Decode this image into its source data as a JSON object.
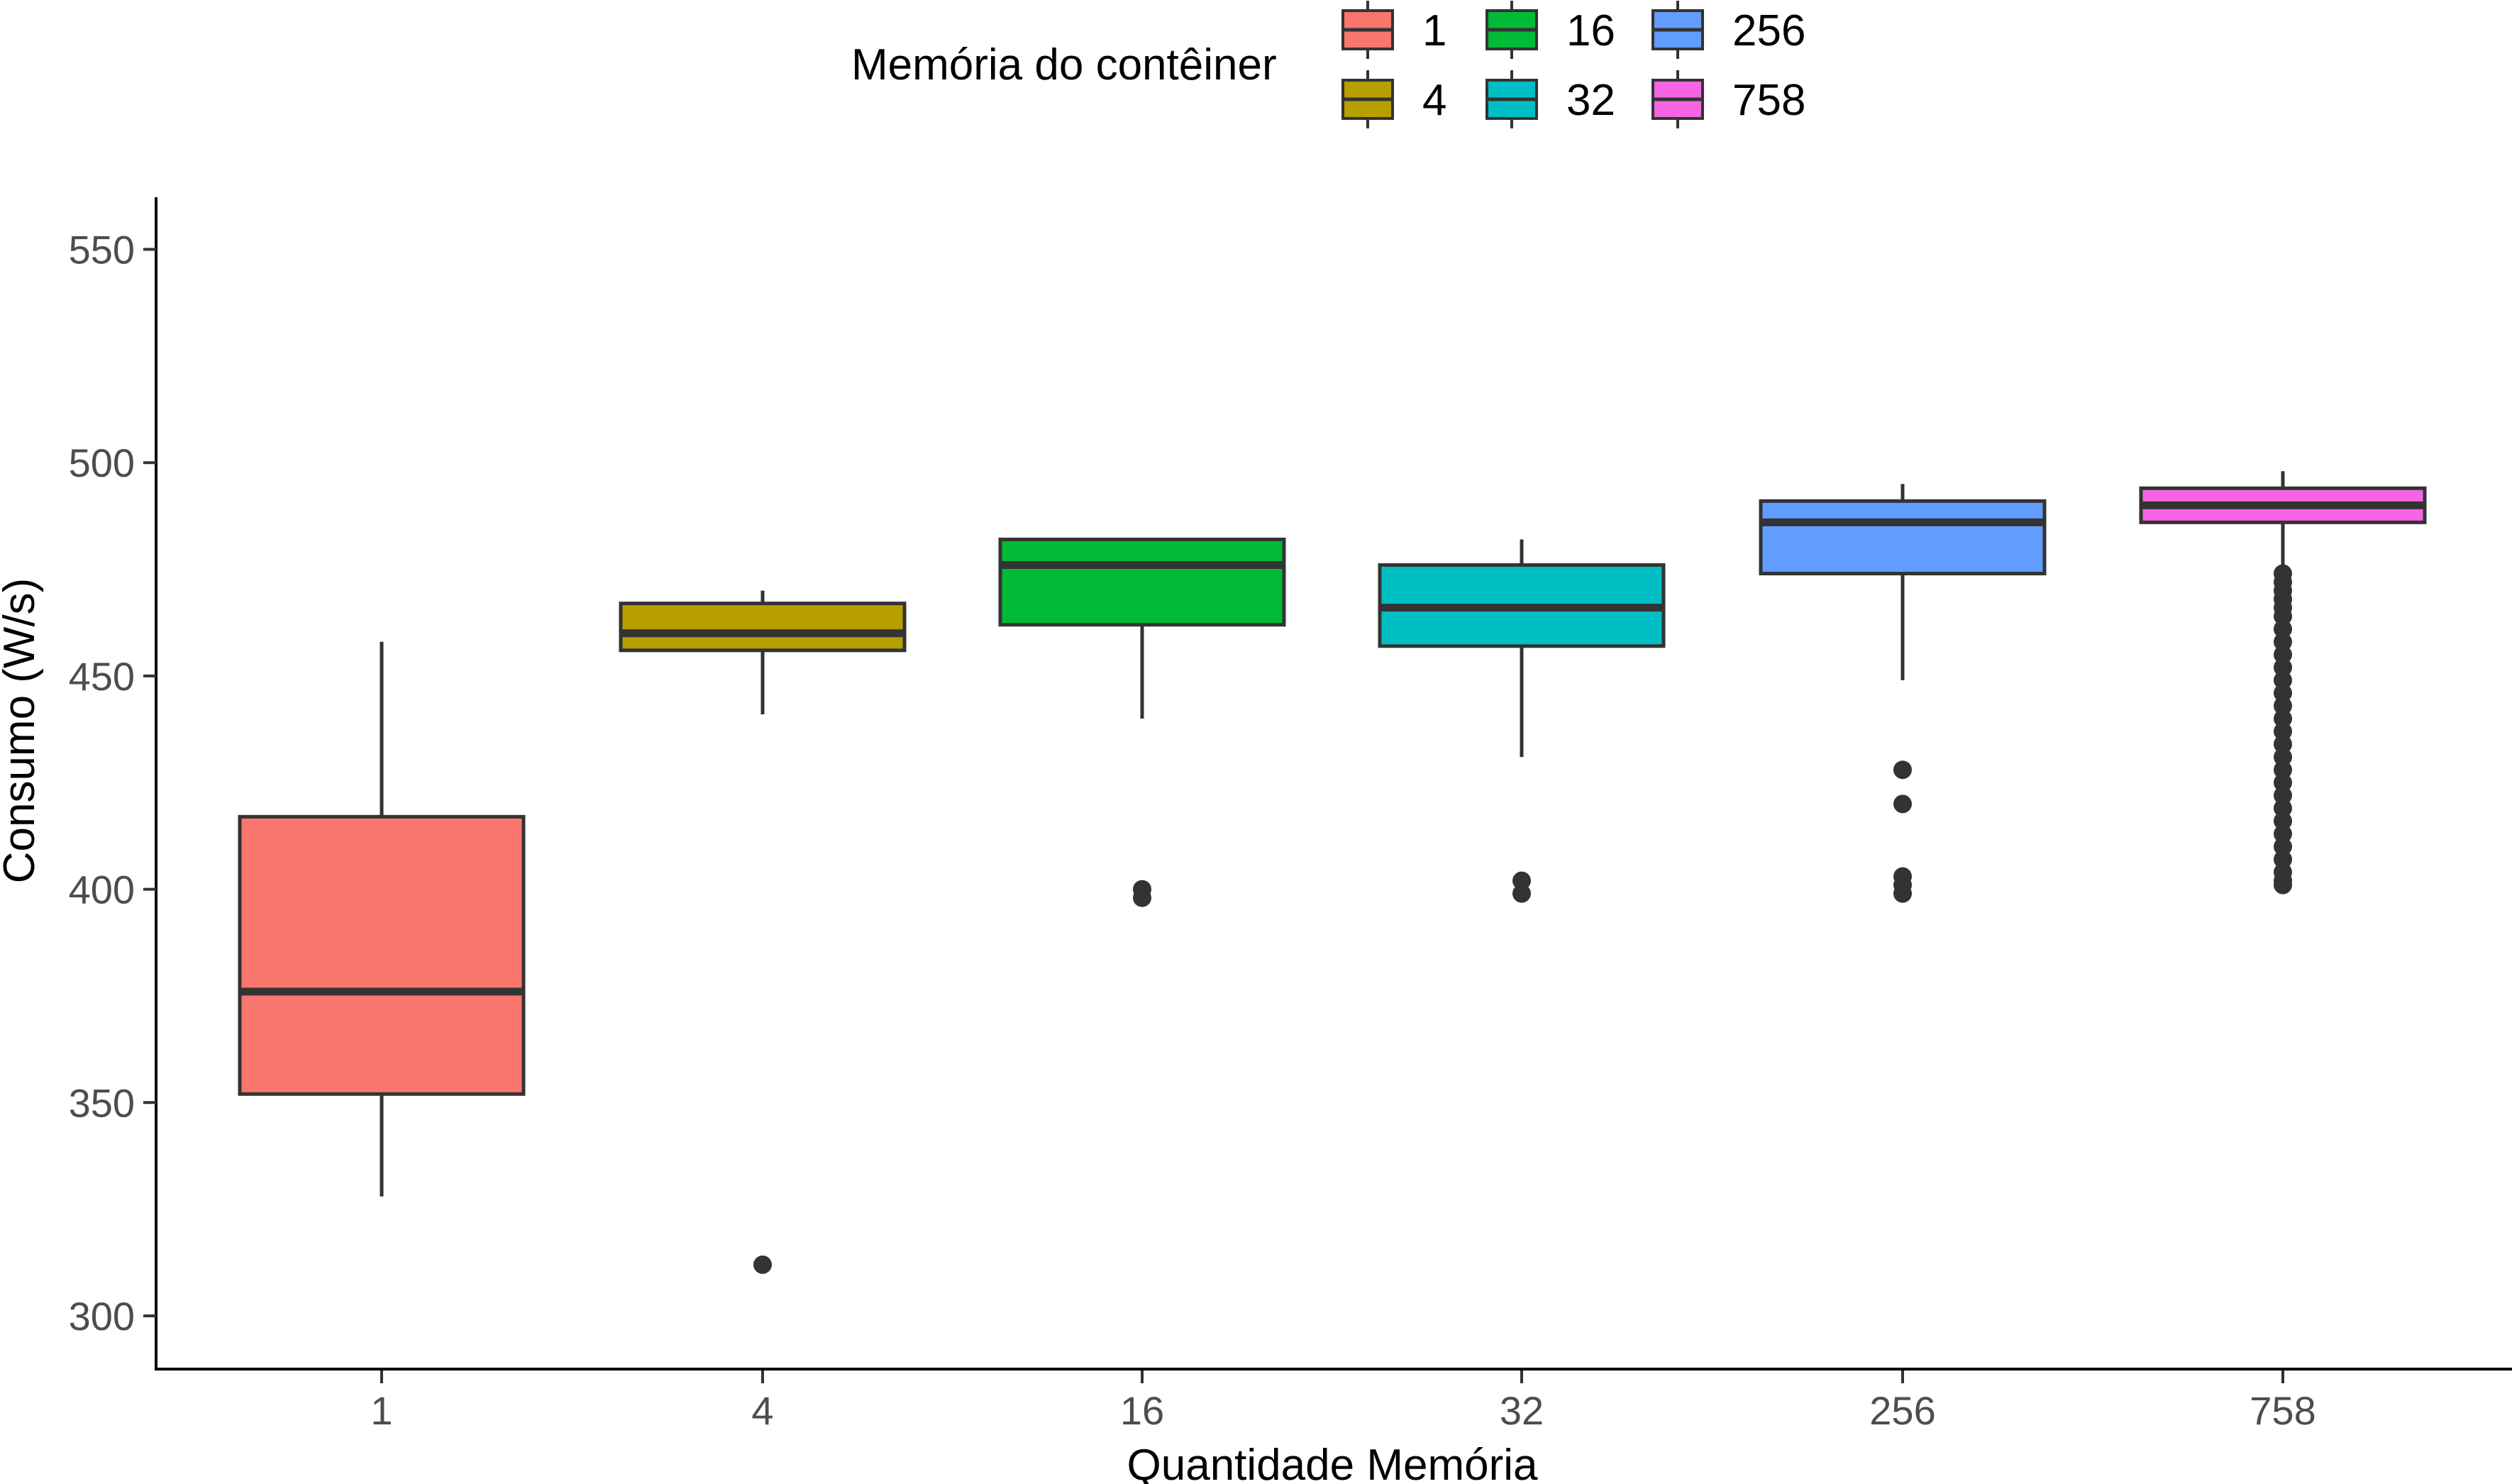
{
  "chart_data": {
    "type": "box",
    "xlabel": "Quantidade Memória",
    "ylabel": "Consumo (W/s)",
    "ylim": [
      293,
      562
    ],
    "y_ticks": [
      300,
      350,
      400,
      450,
      500,
      550
    ],
    "grid": false,
    "legend": {
      "title": "Memória do contêiner",
      "placement": "top",
      "entries": [
        "1",
        "4",
        "16",
        "32",
        "256",
        "758"
      ]
    },
    "categories": [
      "1",
      "4",
      "16",
      "32",
      "256",
      "758"
    ],
    "series": [
      {
        "name": "1",
        "color": "#F8766D",
        "whisker_low": 328,
        "q1": 352,
        "median": 376,
        "q3": 417,
        "whisker_high": 458,
        "outliers": []
      },
      {
        "name": "4",
        "color": "#B79F00",
        "whisker_low": 441,
        "q1": 456,
        "median": 460,
        "q3": 467,
        "whisker_high": 470,
        "outliers": [
          312
        ]
      },
      {
        "name": "16",
        "color": "#00BA38",
        "whisker_low": 440,
        "q1": 462,
        "median": 476,
        "q3": 482,
        "whisker_high": 482,
        "outliers": [
          400,
          398
        ]
      },
      {
        "name": "32",
        "color": "#00BFC4",
        "whisker_low": 431,
        "q1": 457,
        "median": 466,
        "q3": 476,
        "whisker_high": 482,
        "outliers": [
          402,
          399
        ]
      },
      {
        "name": "256",
        "color": "#619CFF",
        "whisker_low": 449,
        "q1": 474,
        "median": 486,
        "q3": 491,
        "whisker_high": 495,
        "outliers": [
          428,
          420,
          403,
          401,
          399
        ]
      },
      {
        "name": "758",
        "color": "#F564E3",
        "whisker_low": 475,
        "q1": 486,
        "median": 490,
        "q3": 494,
        "whisker_high": 498,
        "outliers": [
          474,
          472,
          470,
          468,
          466,
          464,
          461,
          458,
          455,
          452,
          449,
          446,
          443,
          440,
          437,
          434,
          431,
          428,
          425,
          422,
          419,
          416,
          413,
          410,
          407,
          404,
          402,
          401
        ]
      }
    ]
  }
}
